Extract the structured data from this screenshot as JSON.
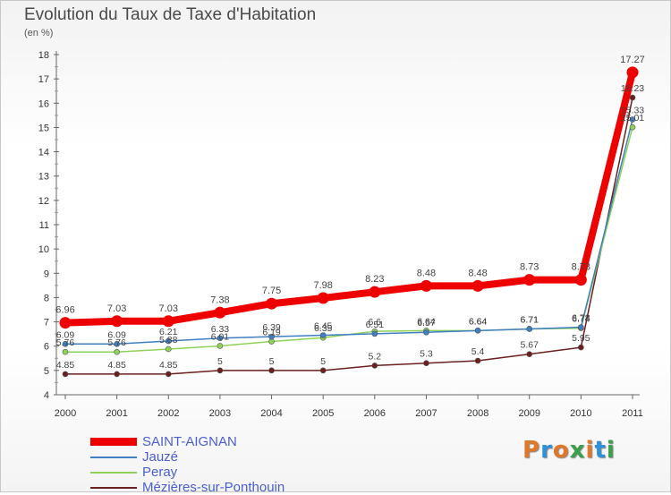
{
  "title": "Evolution du Taux de Taxe d'Habitation",
  "unit": "(en %)",
  "brand": {
    "text": "Proxiti",
    "letters": [
      "P",
      "r",
      "o",
      "x",
      "i",
      "t",
      "i"
    ],
    "colors": [
      "#e0782a",
      "#2f8fd8",
      "#e0782a",
      "#3aa04a",
      "#e0782a",
      "#2f8fd8",
      "#3aa04a"
    ]
  },
  "chart_data": {
    "type": "line",
    "x": [
      "2000",
      "2001",
      "2002",
      "2003",
      "2004",
      "2005",
      "2006",
      "2007",
      "2008",
      "2009",
      "2010",
      "2011"
    ],
    "ylim": [
      4,
      18
    ],
    "yticks": [
      "4",
      "5",
      "6",
      "7",
      "8",
      "9",
      "10",
      "11",
      "12",
      "13",
      "14",
      "15",
      "16",
      "17",
      "18"
    ],
    "grid": false,
    "legend_position": "bottom-left",
    "series": [
      {
        "name": "SAINT-AIGNAN",
        "color": "#ee0000",
        "values": [
          6.96,
          7.03,
          7.03,
          7.38,
          7.75,
          7.98,
          8.23,
          8.48,
          8.48,
          8.73,
          8.73,
          17.27
        ],
        "labels": [
          "6.96",
          "7.03",
          "7.03",
          "7.38",
          "7.75",
          "7.98",
          "8.23",
          "8.48",
          "8.48",
          "8.73",
          "8.73",
          "17.27"
        ]
      },
      {
        "name": "Jauzé",
        "color": "#3f7fc2",
        "values": [
          6.09,
          6.09,
          6.21,
          6.33,
          6.39,
          6.45,
          6.51,
          6.57,
          6.64,
          6.71,
          6.78,
          15.33
        ],
        "labels": [
          "6.09",
          "6.09",
          "6.21",
          "6.33",
          "6.39",
          "6.45",
          "6.51",
          "6.57",
          "6.64",
          "6.71",
          "6.78",
          "15.33"
        ]
      },
      {
        "name": "Peray",
        "color": "#8ed25a",
        "values": [
          5.76,
          5.76,
          5.88,
          6.01,
          6.19,
          6.35,
          6.61,
          6.64,
          6.64,
          6.71,
          6.74,
          15.01
        ],
        "labels": [
          "5.76",
          "5.76",
          "5.88",
          "6.01",
          "6.19",
          "6.35",
          "6.6",
          "6.64",
          "6.64",
          "6.71",
          "6.74",
          "15.01"
        ]
      },
      {
        "name": "Mézières-sur-Ponthouin",
        "color": "#6b1f1f",
        "values": [
          4.85,
          4.85,
          4.85,
          5,
          5,
          5,
          5.2,
          5.3,
          5.4,
          5.67,
          5.95,
          16.23
        ],
        "labels": [
          "4.85",
          "4.85",
          "4.85",
          "5",
          "5",
          "5",
          "5.2",
          "5.3",
          "5.4",
          "5.67",
          "5.95",
          "16.23"
        ]
      }
    ]
  }
}
